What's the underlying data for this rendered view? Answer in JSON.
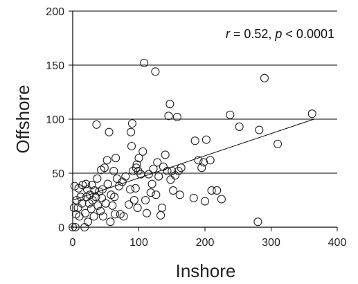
{
  "chart_data": {
    "type": "scatter",
    "xlabel": "Inshore",
    "ylabel": "Offshore",
    "xlim": [
      0,
      400
    ],
    "ylim": [
      0,
      200
    ],
    "x_ticks": [
      "0",
      "100",
      "200",
      "300",
      "400"
    ],
    "y_ticks": [
      "0",
      "50",
      "100",
      "150",
      "200"
    ],
    "grid": "horizontal",
    "annotation": {
      "r_symbol": "r",
      "r_text": " = 0.52, ",
      "p_symbol": "p",
      "p_text": " < 0.0001"
    },
    "trendline": {
      "x": [
        0,
        365
      ],
      "y": [
        25,
        100
      ]
    },
    "points": [
      [
        0,
        0
      ],
      [
        2,
        18
      ],
      [
        3,
        38
      ],
      [
        4,
        0
      ],
      [
        5,
        12
      ],
      [
        6,
        25
      ],
      [
        8,
        18
      ],
      [
        9,
        36
      ],
      [
        10,
        10
      ],
      [
        12,
        28
      ],
      [
        14,
        22
      ],
      [
        15,
        39
      ],
      [
        18,
        0
      ],
      [
        19,
        13
      ],
      [
        20,
        40
      ],
      [
        21,
        28
      ],
      [
        22,
        35
      ],
      [
        23,
        5
      ],
      [
        25,
        22
      ],
      [
        26,
        30
      ],
      [
        28,
        17
      ],
      [
        29,
        39
      ],
      [
        30,
        25
      ],
      [
        32,
        10
      ],
      [
        33,
        34
      ],
      [
        35,
        28
      ],
      [
        36,
        95
      ],
      [
        37,
        45
      ],
      [
        38,
        20
      ],
      [
        40,
        33
      ],
      [
        42,
        15
      ],
      [
        43,
        53
      ],
      [
        44,
        27
      ],
      [
        45,
        35
      ],
      [
        46,
        10
      ],
      [
        48,
        55
      ],
      [
        50,
        22
      ],
      [
        52,
        62
      ],
      [
        53,
        40
      ],
      [
        55,
        88
      ],
      [
        57,
        5
      ],
      [
        58,
        30
      ],
      [
        60,
        20
      ],
      [
        62,
        52
      ],
      [
        63,
        28
      ],
      [
        64,
        12
      ],
      [
        65,
        64
      ],
      [
        67,
        45
      ],
      [
        70,
        38
      ],
      [
        72,
        12
      ],
      [
        75,
        42
      ],
      [
        77,
        10
      ],
      [
        80,
        47
      ],
      [
        85,
        21
      ],
      [
        87,
        35
      ],
      [
        88,
        88
      ],
      [
        89,
        75
      ],
      [
        90,
        96
      ],
      [
        91,
        52
      ],
      [
        93,
        25
      ],
      [
        95,
        36
      ],
      [
        96,
        55
      ],
      [
        97,
        58
      ],
      [
        98,
        18
      ],
      [
        99,
        52
      ],
      [
        100,
        64
      ],
      [
        103,
        49
      ],
      [
        106,
        70
      ],
      [
        108,
        152
      ],
      [
        110,
        25
      ],
      [
        112,
        13
      ],
      [
        115,
        49
      ],
      [
        118,
        32
      ],
      [
        120,
        40
      ],
      [
        122,
        54
      ],
      [
        125,
        144
      ],
      [
        126,
        30
      ],
      [
        128,
        60
      ],
      [
        130,
        47
      ],
      [
        133,
        11
      ],
      [
        135,
        18
      ],
      [
        137,
        56
      ],
      [
        140,
        67
      ],
      [
        143,
        52
      ],
      [
        145,
        103
      ],
      [
        147,
        114
      ],
      [
        148,
        44
      ],
      [
        150,
        52
      ],
      [
        152,
        34
      ],
      [
        155,
        48
      ],
      [
        158,
        102
      ],
      [
        160,
        52
      ],
      [
        162,
        30
      ],
      [
        164,
        55
      ],
      [
        183,
        27
      ],
      [
        185,
        80
      ],
      [
        190,
        62
      ],
      [
        195,
        55
      ],
      [
        198,
        60
      ],
      [
        200,
        24
      ],
      [
        202,
        81
      ],
      [
        208,
        62
      ],
      [
        210,
        34
      ],
      [
        218,
        34
      ],
      [
        225,
        26
      ],
      [
        238,
        104
      ],
      [
        252,
        93
      ],
      [
        280,
        5
      ],
      [
        282,
        90
      ],
      [
        290,
        138
      ],
      [
        310,
        77
      ],
      [
        362,
        105
      ]
    ]
  }
}
